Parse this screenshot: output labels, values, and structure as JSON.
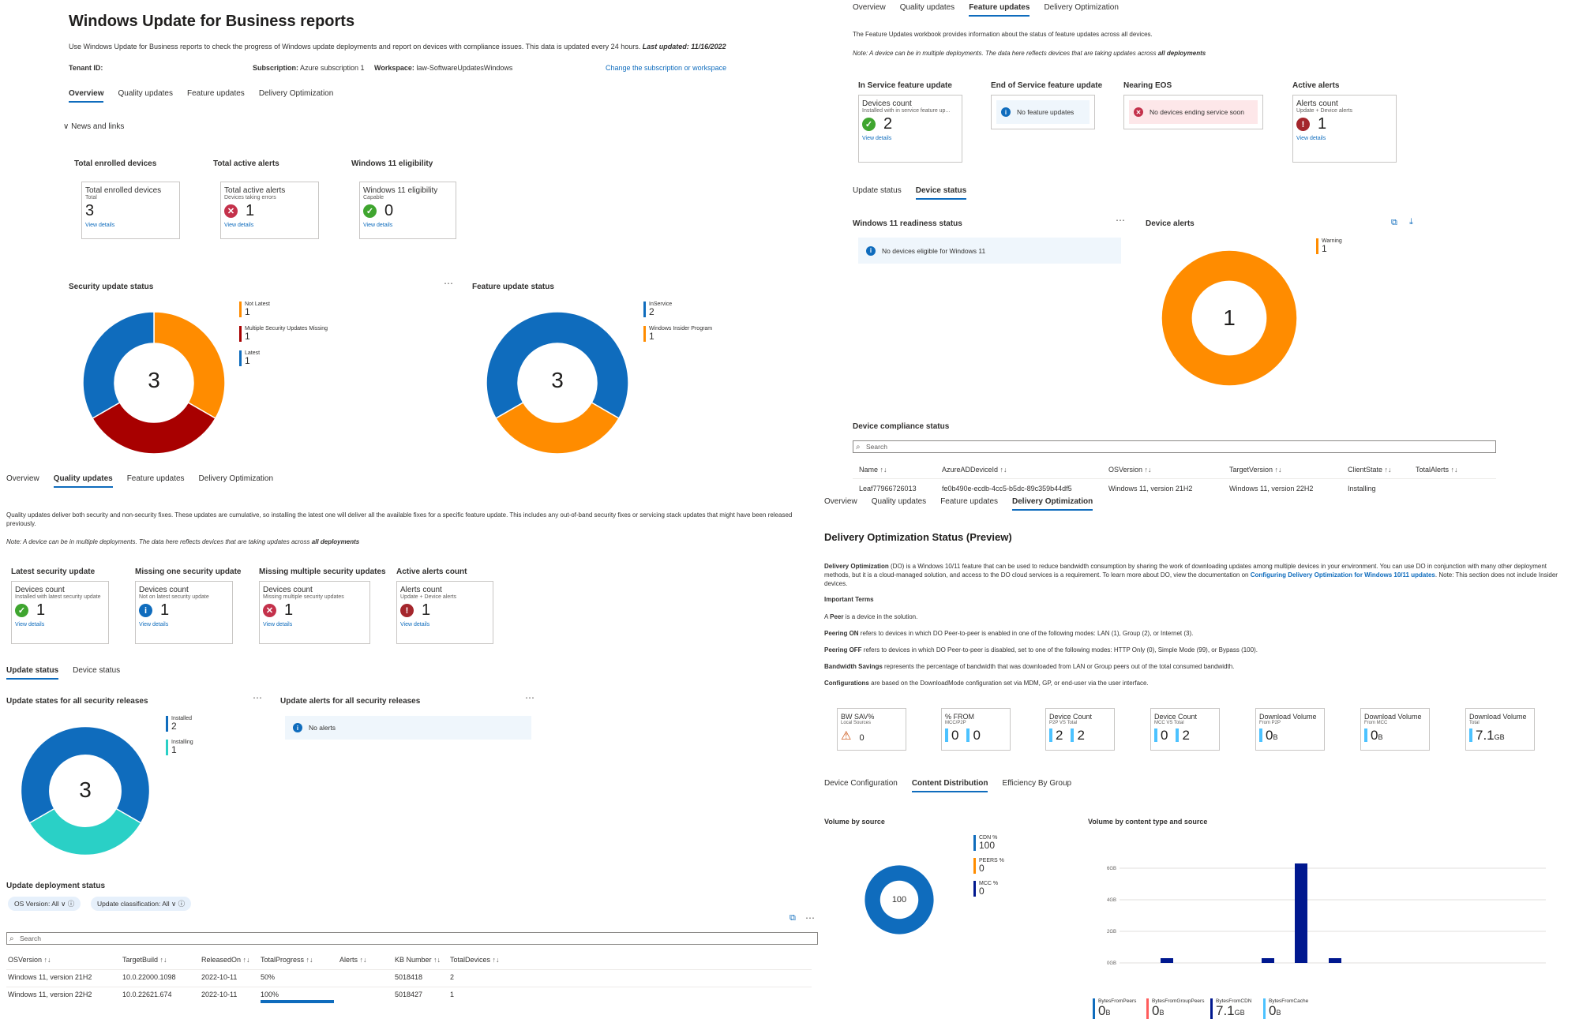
{
  "report": {
    "title": "Windows Update for Business reports",
    "desc": "Use Windows Update for Business reports to check the progress of Windows update deployments and report on devices with compliance issues. This data is updated every 24 hours.",
    "last_updated": "Last updated: 11/16/2022",
    "tenant_label": "Tenant ID:",
    "subscription_label": "Subscription:",
    "subscription_value": "Azure subscription 1",
    "workspace_label": "Workspace:",
    "workspace_value": "law-SoftwareUpdatesWindows",
    "change_link": "Change the subscription or workspace",
    "tabs": [
      "Overview",
      "Quality updates",
      "Feature updates",
      "Delivery Optimization"
    ],
    "news": "News and links",
    "view_details": "View details"
  },
  "overview": {
    "sections": [
      "Total enrolled devices",
      "Total active alerts",
      "Windows 11 eligibility"
    ],
    "cards": [
      {
        "title": "Total enrolled devices",
        "sub": "Total",
        "value": "3"
      },
      {
        "title": "Total active alerts",
        "sub": "Devices taking errors",
        "value": "1"
      },
      {
        "title": "Windows 11 eligibility",
        "sub": "Capable",
        "value": "0"
      }
    ],
    "security_title": "Security update status",
    "security_total": "3",
    "security_legend": [
      {
        "label": "Not Latest",
        "value": "1",
        "color": "#ff8c00"
      },
      {
        "label": "Multiple Security Updates Missing",
        "value": "1",
        "color": "#a80000"
      },
      {
        "label": "Latest",
        "value": "1",
        "color": "#0f6cbd"
      }
    ],
    "feature_title": "Feature update status",
    "feature_total": "3",
    "feature_legend": [
      {
        "label": "InService",
        "value": "2",
        "color": "#0f6cbd"
      },
      {
        "label": "Windows Insider Program",
        "value": "1",
        "color": "#ff8c00"
      }
    ]
  },
  "quality": {
    "desc": "Quality updates deliver both security and non-security fixes. These updates are cumulative, so installing the latest one will deliver all the available fixes for a specific feature update. This includes any out-of-band security fixes or servicing stack updates that might have been released previously.",
    "note": "Note: A device can be in multiple deployments. The data here reflects devices that are taking updates across ",
    "note_bold": "all deployments",
    "sections": [
      "Latest security update",
      "Missing one security update",
      "Missing multiple security updates",
      "Active alerts count"
    ],
    "cards": [
      {
        "title": "Devices count",
        "sub": "Installed with latest security update",
        "value": "1"
      },
      {
        "title": "Devices count",
        "sub": "Not on latest security update",
        "value": "1"
      },
      {
        "title": "Devices count",
        "sub": "Missing multiple security updates",
        "value": "1"
      },
      {
        "title": "Alerts count",
        "sub": "Update + Device alerts",
        "value": "1"
      }
    ],
    "subtabs": [
      "Update status",
      "Device status"
    ],
    "states_title": "Update states for all security releases",
    "states_total": "3",
    "states_legend": [
      {
        "label": "Installed",
        "value": "2",
        "color": "#0f6cbd"
      },
      {
        "label": "Installing",
        "value": "1",
        "color": "#2ad0c6"
      }
    ],
    "alerts_title": "Update alerts for all security releases",
    "no_alerts": "No alerts",
    "deploy_title": "Update deployment status",
    "filters": [
      "OS Version: All",
      "Update classification: All"
    ],
    "search": "Search",
    "columns": [
      "OSVersion",
      "TargetBuild",
      "ReleasedOn",
      "TotalProgress",
      "Alerts",
      "KB Number",
      "TotalDevices"
    ],
    "rows": [
      {
        "os": "Windows 11, version 21H2",
        "build": "10.0.22000.1098",
        "released": "2022-10-11",
        "progress": "50%",
        "kb": "5018418",
        "devices": "2"
      },
      {
        "os": "Windows 11, version 22H2",
        "build": "10.0.22621.674",
        "released": "2022-10-11",
        "progress": "100%",
        "kb": "5018427",
        "devices": "1"
      }
    ]
  },
  "feature": {
    "desc": "The Feature Updates workbook provides information about the status of feature updates across all devices.",
    "note": "Note: A device can be in multiple deployments. The data here reflects devices that are taking updates across ",
    "note_bold": "all deployments",
    "sections": [
      "In Service feature update",
      "End of Service feature update",
      "Nearing EOS",
      "Active alerts"
    ],
    "card1": {
      "title": "Devices count",
      "sub": "Installed with in service feature up...",
      "value": "2"
    },
    "eos_msg": "No feature updates",
    "nearing_msg": "No devices ending service soon",
    "card4": {
      "title": "Alerts count",
      "sub": "Update + Device alerts",
      "value": "1"
    },
    "subtabs": [
      "Update status",
      "Device status"
    ],
    "w11_title": "Windows 11 readiness status",
    "w11_msg": "No devices eligible for Windows 11",
    "alerts_title": "Device alerts",
    "alerts_total": "1",
    "alerts_legend": [
      {
        "label": "Warning",
        "value": "1",
        "color": "#ff8c00"
      }
    ],
    "compliance_title": "Device compliance status",
    "search": "Search",
    "columns": [
      "Name",
      "AzureADDeviceId",
      "OSVersion",
      "TargetVersion",
      "ClientState",
      "TotalAlerts"
    ],
    "row": {
      "name": "Leaf77966726013",
      "id": "fe0b490e-ecdb-4cc5-b5dc-89c359b44df5",
      "os": "Windows 11, version 21H2",
      "target": "Windows 11, version 22H2",
      "state": "Installing"
    }
  },
  "delivery": {
    "title": "Delivery Optimization Status (Preview)",
    "desc_bold": "Delivery Optimization",
    "desc": " (DO) is a Windows 10/11 feature that can be used to reduce bandwidth consumption by sharing the work of downloading updates among multiple devices in your environment. You can use DO in conjunction with many other deployment methods, but it is a cloud-managed solution, and access to the DO cloud services is a requirement. To learn more about DO, view the documentation on ",
    "desc_link": "Configuring Delivery Optimization for Windows 10/11 updates",
    "desc_tail": ". Note: This section does not include Insider devices.",
    "terms_title": "Important Terms",
    "terms": [
      {
        "bold": "",
        "pre": "A ",
        "b": "Peer",
        "rest": " is a device in the solution."
      },
      {
        "pre": "",
        "b": "Peering ON",
        "rest": " refers to devices in which DO Peer-to-peer is enabled in one of the following modes: LAN (1), Group (2), or Internet (3)."
      },
      {
        "pre": "",
        "b": "Peering OFF",
        "rest": " refers to devices in which DO Peer-to-peer is disabled, set to one of the following modes: HTTP Only (0), Simple Mode (99), or Bypass (100)."
      },
      {
        "pre": "",
        "b": "Bandwidth Savings",
        "rest": " represents the percentage of bandwidth that was downloaded from LAN or Group peers out of the total consumed bandwidth."
      },
      {
        "pre": "",
        "b": "Configurations",
        "rest": " are based on the DownloadMode configuration set via MDM, GP, or end-user via the user interface."
      }
    ],
    "cards": [
      {
        "title": "BW SAV%",
        "sub": "Local Sources",
        "values": [
          "0"
        ]
      },
      {
        "title": "% FROM",
        "sub": "MCC/P2P",
        "values": [
          "0",
          "0"
        ]
      },
      {
        "title": "Device Count",
        "sub": "P2P VS Total",
        "values": [
          "2",
          "2"
        ]
      },
      {
        "title": "Device Count",
        "sub": "MCC VS Total",
        "values": [
          "0",
          "2"
        ]
      },
      {
        "title": "Download Volume",
        "sub": "From P2P",
        "values": [
          "0"
        ],
        "unit": "B"
      },
      {
        "title": "Download Volume",
        "sub": "From MCC",
        "values": [
          "0"
        ],
        "unit": "B"
      },
      {
        "title": "Download Volume",
        "sub": "Total",
        "values": [
          "7.1"
        ],
        "unit": "GB"
      }
    ],
    "subtabs": [
      "Device Configuration",
      "Content Distribution",
      "Efficiency By Group"
    ],
    "vol_source_title": "Volume by source",
    "vol_source_total": "100",
    "vol_source_legend": [
      {
        "label": "CDN %",
        "value": "100",
        "color": "#0f6cbd"
      },
      {
        "label": "PEERS %",
        "value": "0",
        "color": "#ff8c00"
      },
      {
        "label": "MCC %",
        "value": "0",
        "color": "#00188f"
      }
    ],
    "vol_type_title": "Volume by content type and source",
    "bottom_legend": [
      {
        "label": "BytesFromPeers",
        "value": "0",
        "unit": "B",
        "color": "#0f6cbd"
      },
      {
        "label": "BytesFromGroupPeers",
        "value": "0",
        "unit": "B",
        "color": "#ff5c5c"
      },
      {
        "label": "BytesFromCDN",
        "value": "7.1",
        "unit": "GB",
        "color": "#00188f"
      },
      {
        "label": "BytesFromCache",
        "value": "0",
        "unit": "B",
        "color": "#4cc2ff"
      }
    ]
  },
  "chart_data": [
    {
      "type": "pie",
      "title": "Security update status",
      "categories": [
        "Not Latest",
        "Multiple Security Updates Missing",
        "Latest"
      ],
      "values": [
        1,
        1,
        1
      ]
    },
    {
      "type": "pie",
      "title": "Feature update status",
      "categories": [
        "InService",
        "Windows Insider Program"
      ],
      "values": [
        2,
        1
      ]
    },
    {
      "type": "pie",
      "title": "Update states for all security releases",
      "categories": [
        "Installed",
        "Installing"
      ],
      "values": [
        2,
        1
      ]
    },
    {
      "type": "pie",
      "title": "Device alerts",
      "categories": [
        "Warning"
      ],
      "values": [
        1
      ]
    },
    {
      "type": "pie",
      "title": "Volume by source",
      "categories": [
        "CDN %",
        "PEERS %",
        "MCC %"
      ],
      "values": [
        100,
        0,
        0
      ]
    },
    {
      "type": "bar",
      "title": "Volume by content type and source",
      "yticks": [
        "6GB",
        "4GB",
        "2GB",
        "0GB"
      ],
      "ylim": [
        0,
        7
      ],
      "values": [
        0.3,
        0.3,
        6.3,
        0.3
      ]
    }
  ]
}
